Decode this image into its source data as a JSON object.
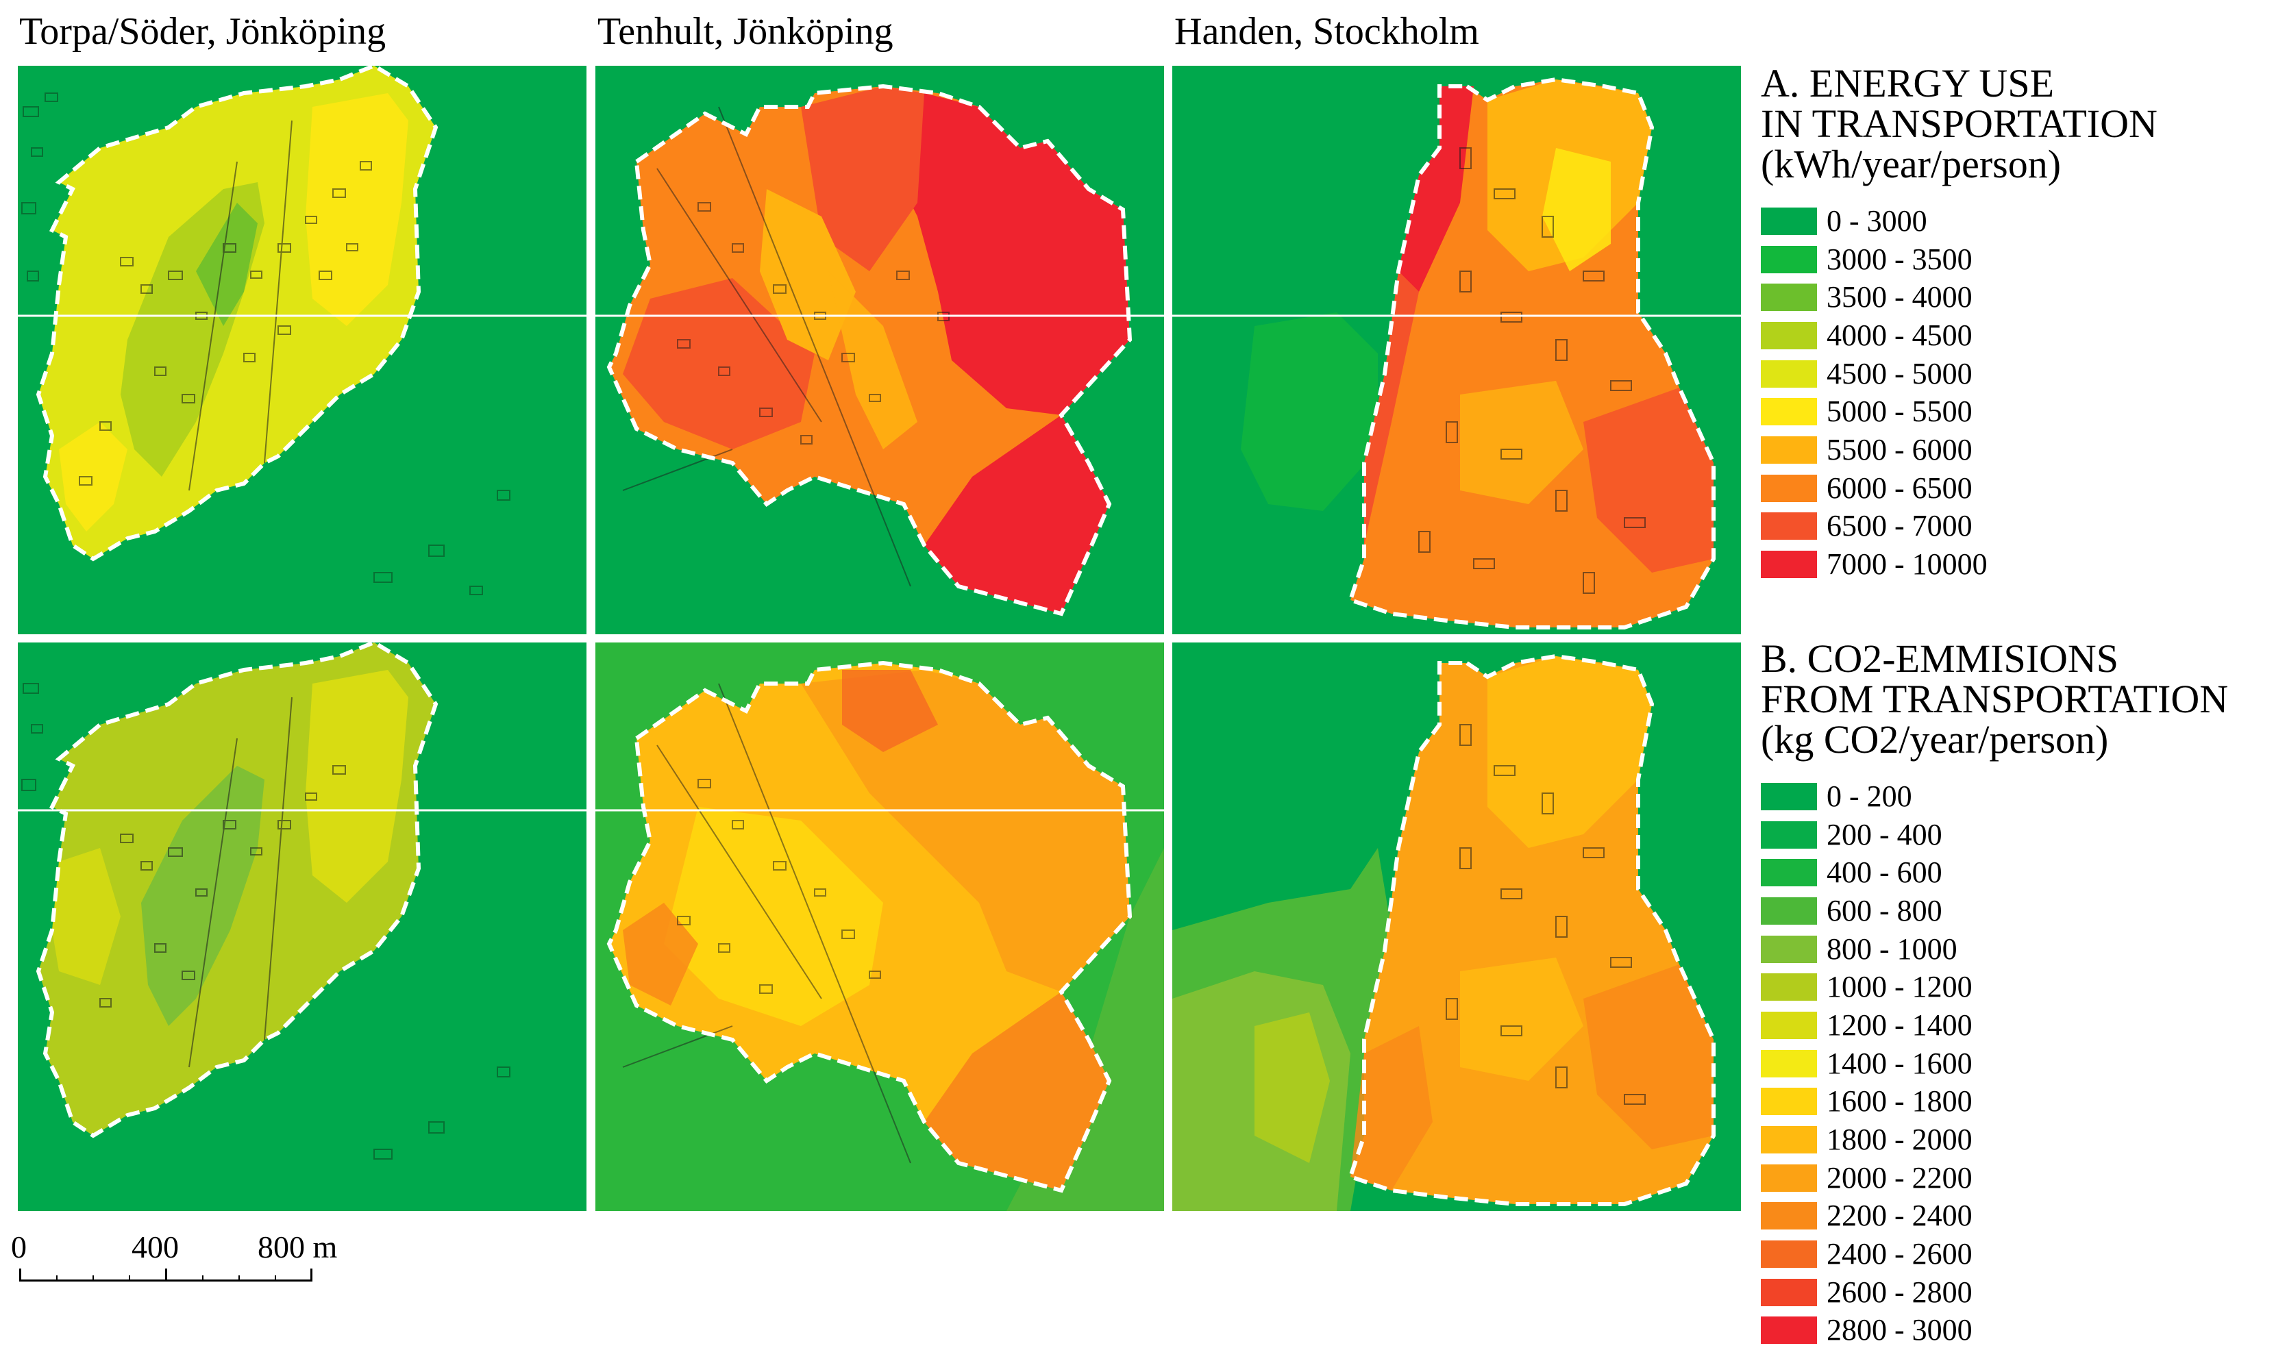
{
  "columns": [
    {
      "title": "Torpa/Söder, Jönköping"
    },
    {
      "title": "Tenhult, Jönköping"
    },
    {
      "title": "Handen, Stockholm"
    }
  ],
  "legend_a": {
    "title": "A. ENERGY USE\nIN TRANSPORTATION\n(kWh/year/person)",
    "items": [
      {
        "label": "0 - 3000",
        "color": "#00a84c"
      },
      {
        "label": "3000 - 3500",
        "color": "#12b83c"
      },
      {
        "label": "3500 - 4000",
        "color": "#6cbf2c"
      },
      {
        "label": "4000 - 4500",
        "color": "#b2d21a"
      },
      {
        "label": "4500 - 5000",
        "color": "#dfe514"
      },
      {
        "label": "5000 - 5500",
        "color": "#ffe812"
      },
      {
        "label": "5500 - 6000",
        "color": "#ffb310"
      },
      {
        "label": "6000 - 6500",
        "color": "#fb8419"
      },
      {
        "label": "6500 - 7000",
        "color": "#f4522a"
      },
      {
        "label": "7000 - 10000",
        "color": "#ef232f"
      }
    ]
  },
  "legend_b": {
    "title": "B. CO2-EMMISIONS\nFROM TRANSPORTATION\n(kg CO2/year/person)",
    "items": [
      {
        "label": "0 - 200",
        "color": "#00a84c"
      },
      {
        "label": "200 - 400",
        "color": "#07ad49"
      },
      {
        "label": "400 - 600",
        "color": "#18b43f"
      },
      {
        "label": "600 - 800",
        "color": "#4cb838"
      },
      {
        "label": "800 - 1000",
        "color": "#7fc034"
      },
      {
        "label": "1000 - 1200",
        "color": "#b2cc1c"
      },
      {
        "label": "1200 - 1400",
        "color": "#d8dc12"
      },
      {
        "label": "1400 - 1600",
        "color": "#f4ea14"
      },
      {
        "label": "1600 - 1800",
        "color": "#ffd40e"
      },
      {
        "label": "1800 - 2000",
        "color": "#ffba10"
      },
      {
        "label": "2000 - 2200",
        "color": "#fca214"
      },
      {
        "label": "2200 - 2400",
        "color": "#f98a18"
      },
      {
        "label": "2400 - 2600",
        "color": "#f56a20"
      },
      {
        "label": "2600 - 2800",
        "color": "#f24427"
      },
      {
        "label": "2800 - 3000",
        "color": "#ef232f"
      }
    ]
  },
  "scale": {
    "labels": [
      "0",
      "400",
      "800 m"
    ]
  }
}
